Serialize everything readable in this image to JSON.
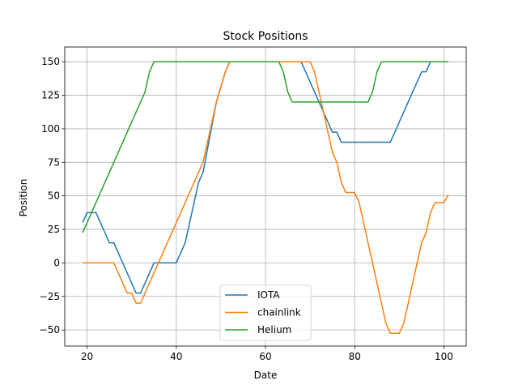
{
  "chart_data": {
    "type": "line",
    "title": "Stock Positions",
    "xlabel": "Date",
    "ylabel": "Position",
    "xlim": [
      15,
      105
    ],
    "ylim": [
      -62,
      161
    ],
    "xticks": [
      20,
      40,
      60,
      80,
      100
    ],
    "yticks": [
      -50,
      -25,
      0,
      25,
      50,
      75,
      100,
      125,
      150
    ],
    "grid": true,
    "legend_position": "lower center",
    "series": [
      {
        "name": "IOTA",
        "color": "#1f77b4",
        "points": [
          [
            19,
            30
          ],
          [
            20,
            37.5
          ],
          [
            22,
            37.5
          ],
          [
            25,
            15
          ],
          [
            26,
            15
          ],
          [
            31,
            -22.5
          ],
          [
            32,
            -22.5
          ],
          [
            35,
            0
          ],
          [
            40,
            0
          ],
          [
            42,
            15
          ],
          [
            45,
            60
          ],
          [
            46,
            67.5
          ],
          [
            49,
            120
          ],
          [
            51,
            142.5
          ],
          [
            52,
            150
          ],
          [
            68,
            150
          ],
          [
            74,
            105
          ],
          [
            75,
            97.5
          ],
          [
            76,
            97.5
          ],
          [
            77,
            90
          ],
          [
            88,
            90
          ],
          [
            95,
            142.5
          ],
          [
            96,
            142.5
          ],
          [
            97,
            150
          ],
          [
            101,
            150
          ]
        ]
      },
      {
        "name": "chainlink",
        "color": "#ff7f0e",
        "points": [
          [
            19,
            0
          ],
          [
            26,
            0
          ],
          [
            29,
            -22.5
          ],
          [
            30,
            -22.5
          ],
          [
            31,
            -30
          ],
          [
            32,
            -30
          ],
          [
            45,
            67.5
          ],
          [
            46,
            75
          ],
          [
            49,
            120
          ],
          [
            51,
            142.5
          ],
          [
            52,
            150
          ],
          [
            70,
            150
          ],
          [
            71,
            142.5
          ],
          [
            75,
            82.5
          ],
          [
            76,
            75
          ],
          [
            77,
            60
          ],
          [
            78,
            52.5
          ],
          [
            80,
            52.5
          ],
          [
            81,
            45
          ],
          [
            87,
            -45
          ],
          [
            88,
            -52.5
          ],
          [
            90,
            -52.5
          ],
          [
            91,
            -45
          ],
          [
            95,
            15
          ],
          [
            96,
            22.5
          ],
          [
            97,
            37.5
          ],
          [
            98,
            45
          ],
          [
            100,
            45
          ],
          [
            101,
            51
          ]
        ]
      },
      {
        "name": "Helium",
        "color": "#2ca02c",
        "points": [
          [
            19,
            22.5
          ],
          [
            33,
            127.5
          ],
          [
            34,
            142.5
          ],
          [
            35,
            150
          ],
          [
            63,
            150
          ],
          [
            64,
            142.5
          ],
          [
            65,
            127.5
          ],
          [
            66,
            120
          ],
          [
            83,
            120
          ],
          [
            84,
            127.5
          ],
          [
            85,
            142.5
          ],
          [
            86,
            150
          ],
          [
            101,
            150
          ]
        ]
      }
    ]
  }
}
